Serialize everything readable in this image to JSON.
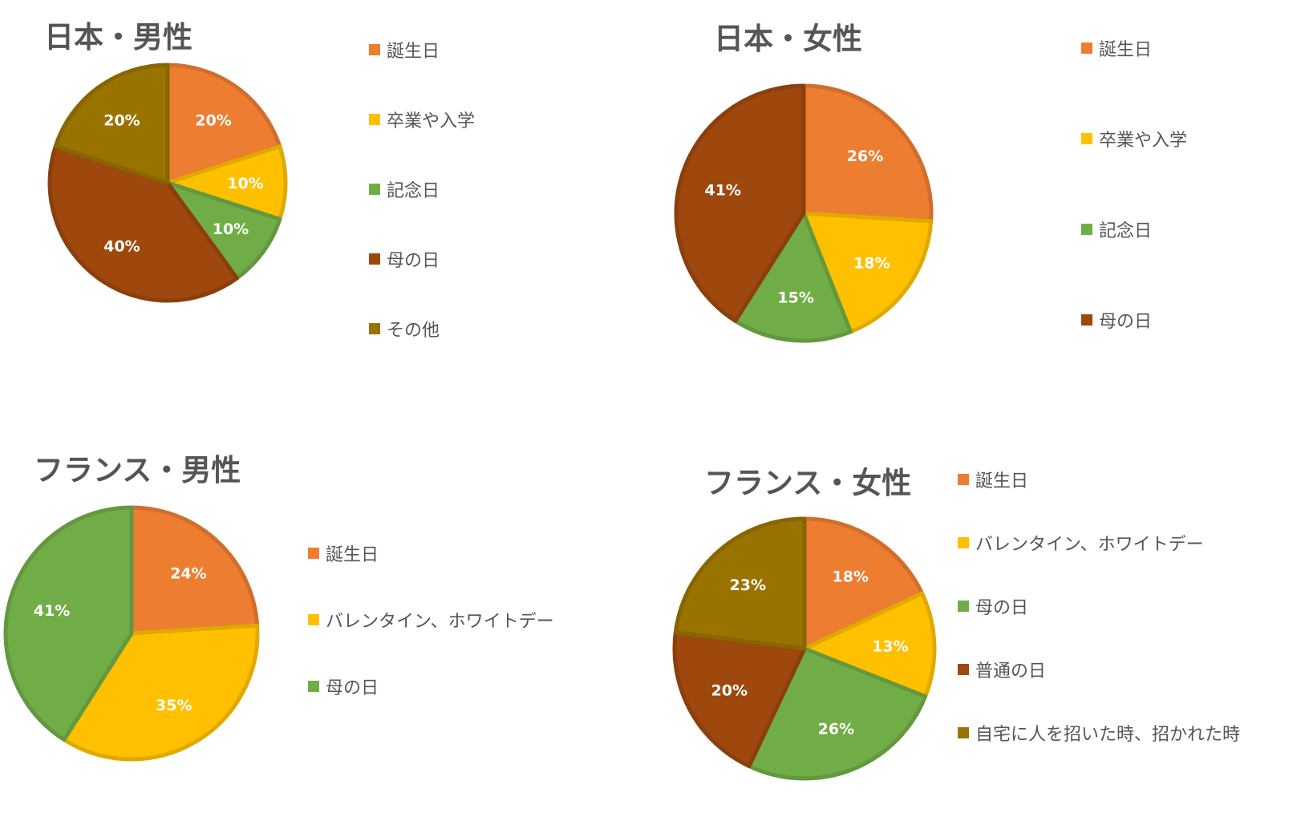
{
  "colors": {
    "orange": "#ED7D31",
    "yellow": "#FFC000",
    "green": "#70AD47",
    "brown": "#9E480E",
    "olive": "#997300"
  },
  "chart_data": [
    {
      "type": "pie",
      "title": "日本・男性",
      "categories": [
        "誕生日",
        "卒業や入学",
        "記念日",
        "母の日",
        "その他"
      ],
      "values": [
        20,
        10,
        10,
        40,
        20
      ],
      "labels": [
        "20%",
        "10%",
        "10%",
        "40%",
        "20%"
      ],
      "slice_colors": [
        "orange",
        "yellow",
        "green",
        "brown",
        "olive"
      ],
      "legend_position": "right"
    },
    {
      "type": "pie",
      "title": "日本・女性",
      "categories": [
        "誕生日",
        "卒業や入学",
        "記念日",
        "母の日"
      ],
      "values": [
        26,
        18,
        15,
        41
      ],
      "labels": [
        "26%",
        "18%",
        "15%",
        "41%"
      ],
      "slice_colors": [
        "orange",
        "yellow",
        "green",
        "brown"
      ],
      "legend_position": "right"
    },
    {
      "type": "pie",
      "title": "フランス・男性",
      "categories": [
        "誕生日",
        "バレンタイン、ホワイトデー",
        "母の日"
      ],
      "values": [
        24,
        35,
        41
      ],
      "labels": [
        "24%",
        "35%",
        "41%"
      ],
      "slice_colors": [
        "orange",
        "yellow",
        "green"
      ],
      "legend_position": "right"
    },
    {
      "type": "pie",
      "title": "フランス・女性",
      "categories": [
        "誕生日",
        "バレンタイン、ホワイトデー",
        "母の日",
        "普通の日",
        "自宅に人を招いた時、招かれた時"
      ],
      "values": [
        18,
        13,
        26,
        20,
        23
      ],
      "labels": [
        "18%",
        "13%",
        "26%",
        "20%",
        "23%"
      ],
      "slice_colors": [
        "orange",
        "yellow",
        "green",
        "brown",
        "olive"
      ],
      "legend_position": "right"
    }
  ]
}
